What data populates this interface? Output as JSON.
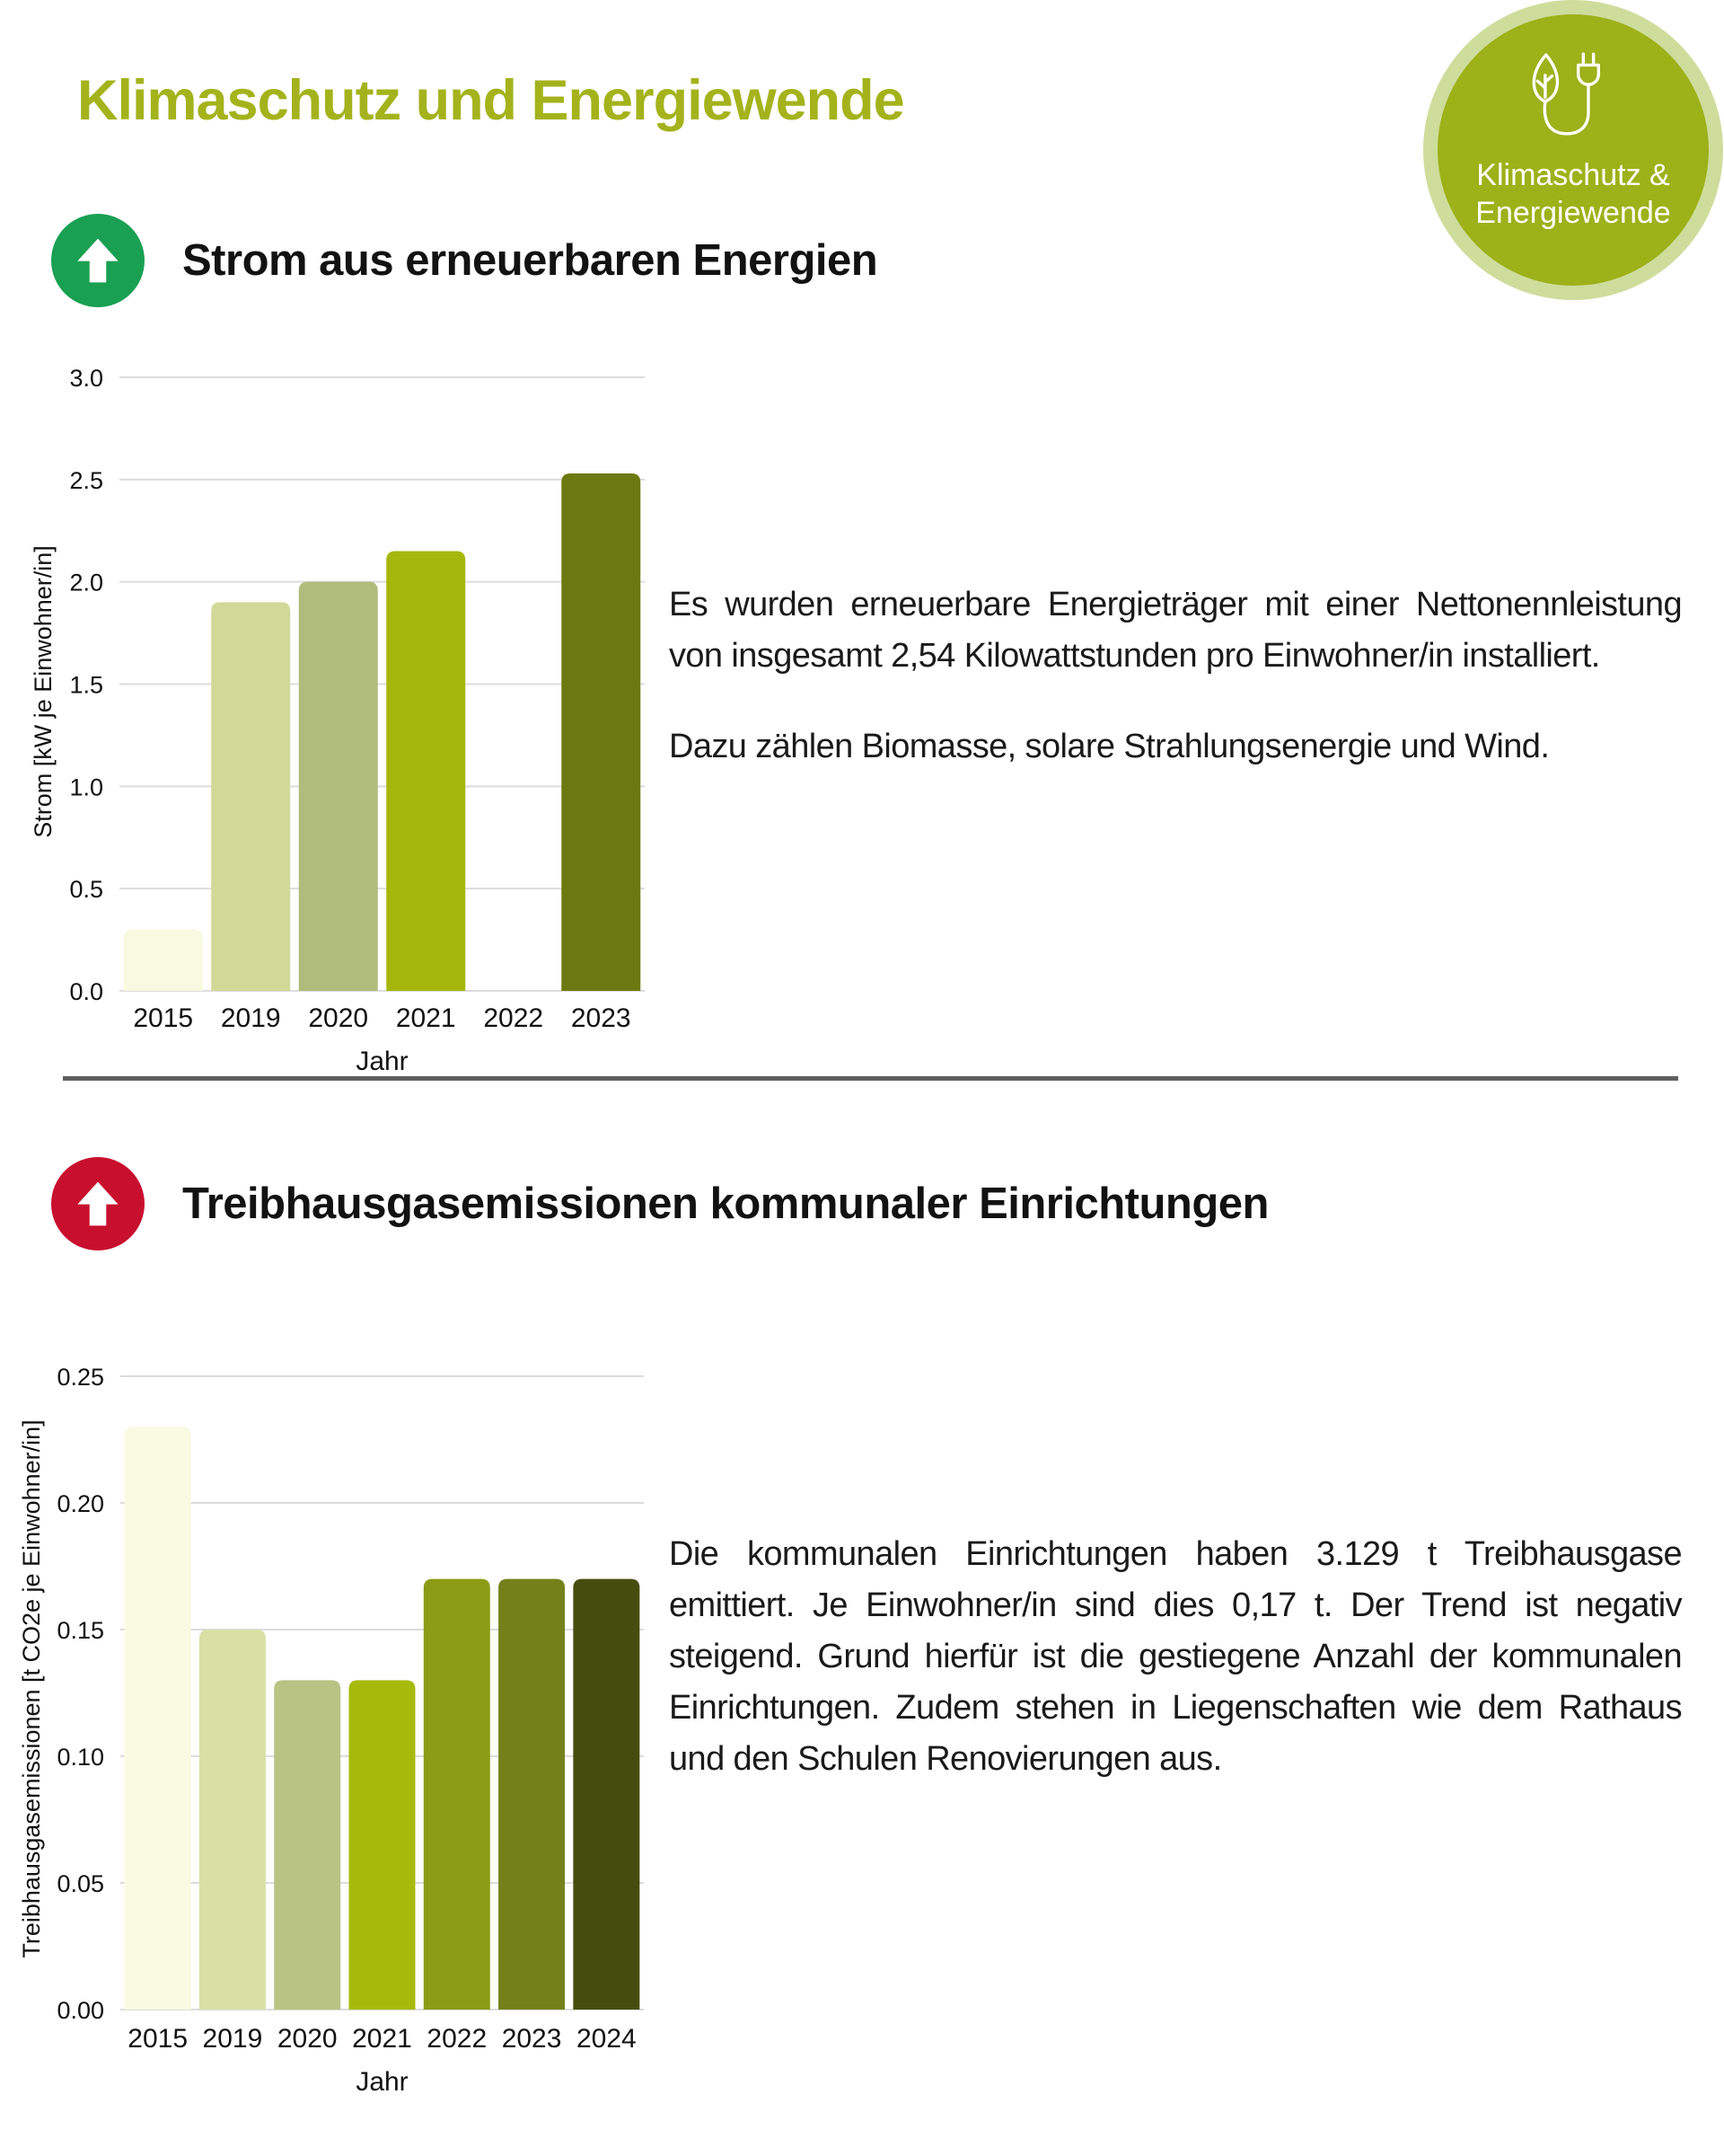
{
  "page": {
    "title": "Klimaschutz und Energiewende"
  },
  "badge": {
    "line1": "Klimaschutz &",
    "line2": "Energiewende",
    "outer_color": "#cedd9b",
    "inner_color": "#9db119",
    "icon": "leaf-plug-icon"
  },
  "divider_color": "#606060",
  "sections": [
    {
      "id": "strom",
      "indicator": {
        "icon": "arrow-up-icon",
        "direction": "up",
        "color": "#19a052"
      },
      "heading": "Strom aus erneuerbaren Energien",
      "paragraphs": [
        "Es wurden erneuerbare Energieträger mit einer Nettonennleistung von insgesamt 2,54 Kilowattstunden pro Einwohner/in installiert.",
        "Dazu zählen Biomasse, solare Strahlungsenergie und Wind."
      ]
    },
    {
      "id": "treibhausgase",
      "indicator": {
        "icon": "arrow-up-icon",
        "direction": "up",
        "color": "#c8102e"
      },
      "heading": "Treibhausgasemissionen kommunaler Einrichtungen",
      "paragraphs": [
        "Die kommunalen Einrichtungen haben 3.129 t Treibhausgase emittiert. Je Einwohner/in sind dies 0,17 t. Der Trend ist negativ steigend. Grund hierfür ist die gestiegene Anzahl der kommunalen Einrichtungen. Zudem stehen in Liegenschaften wie dem Rathaus und den Schulen Renovierungen aus."
      ]
    }
  ],
  "chart_data": [
    {
      "type": "bar",
      "title": "",
      "categories": [
        "2015",
        "2019",
        "2020",
        "2021",
        "2022",
        "2023"
      ],
      "values": [
        0.3,
        1.9,
        2.0,
        2.15,
        null,
        2.53
      ],
      "colors": [
        "#f7f9e0",
        "#d0d998",
        "#b0bc7b",
        "#a6b70b",
        null,
        "#6b7a10"
      ],
      "xlabel": "Jahr",
      "ylabel": "Strom [kW je Einwohner/in]",
      "ylim": [
        0,
        3
      ],
      "yticks": [
        "0.0",
        "0.5",
        "1.0",
        "1.5",
        "2.0",
        "2.5",
        "3.0"
      ],
      "grid": true,
      "legend": false
    },
    {
      "type": "bar",
      "title": "",
      "categories": [
        "2015",
        "2019",
        "2020",
        "2021",
        "2022",
        "2023",
        "2024"
      ],
      "values": [
        0.23,
        0.15,
        0.13,
        0.13,
        0.17,
        0.17,
        0.17
      ],
      "colors": [
        "#f8fae2",
        "#d8e0a6",
        "#b9c384",
        "#a6ba0c",
        "#8c9b14",
        "#74811b",
        "#454d0e"
      ],
      "xlabel": "Jahr",
      "ylabel": "Treibhausgasemissionen [t CO2e je Einwohner/in]",
      "ylim": [
        0,
        0.25
      ],
      "yticks": [
        "0.00",
        "0.05",
        "0.10",
        "0.15",
        "0.20",
        "0.25"
      ],
      "grid": true,
      "legend": false
    }
  ]
}
